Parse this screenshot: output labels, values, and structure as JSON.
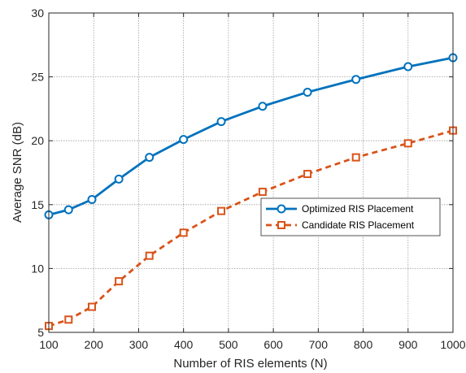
{
  "chart_data": {
    "type": "line",
    "title": "",
    "xlabel": "Number of RIS elements (N)",
    "ylabel": "Average SNR (dB)",
    "xlim": [
      100,
      1000
    ],
    "ylim": [
      5,
      30
    ],
    "xticks": [
      100,
      200,
      300,
      400,
      500,
      600,
      700,
      800,
      900,
      1000
    ],
    "yticks": [
      5,
      10,
      15,
      20,
      25,
      30
    ],
    "xtick_labels": [
      "100",
      "200",
      "300",
      "400",
      "500",
      "600",
      "700",
      "800",
      "900",
      "1000"
    ],
    "ytick_labels": [
      "5",
      "10",
      "15",
      "20",
      "25",
      "30"
    ],
    "grid": true,
    "legend_position": "center-right",
    "series": [
      {
        "name": "Optimized RIS Placement",
        "color": "#0072BD",
        "line_style": "solid",
        "marker": "circle",
        "x": [
          100,
          144,
          196,
          256,
          324,
          400,
          484,
          576,
          676,
          784,
          900,
          1000
        ],
        "y": [
          14.2,
          14.6,
          15.4,
          17.0,
          18.7,
          20.1,
          21.5,
          22.7,
          23.8,
          24.8,
          25.8,
          26.5
        ]
      },
      {
        "name": "Candidate RIS Placement",
        "color": "#D95319",
        "line_style": "dashed",
        "marker": "square",
        "x": [
          100,
          144,
          196,
          256,
          324,
          400,
          484,
          576,
          676,
          784,
          900,
          1000
        ],
        "y": [
          5.5,
          6.0,
          7.0,
          9.0,
          11.0,
          12.8,
          14.5,
          16.0,
          17.4,
          18.7,
          19.8,
          20.8
        ]
      }
    ]
  }
}
